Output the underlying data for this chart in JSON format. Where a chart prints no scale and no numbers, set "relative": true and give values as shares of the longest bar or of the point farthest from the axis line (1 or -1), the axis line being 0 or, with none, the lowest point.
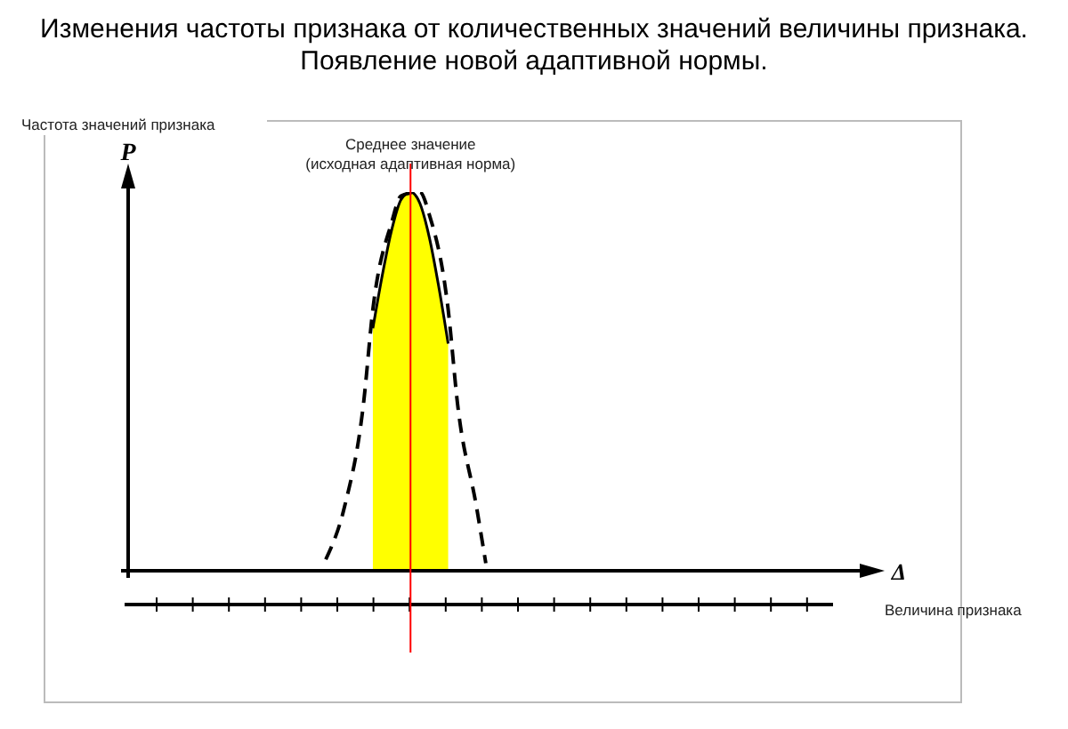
{
  "chart_data": {
    "type": "area",
    "title": "Изменения частоты признака от количественных значений величины признака.",
    "subtitle": "Появление новой адаптивной нормы.",
    "ylabel": "Частота значений признака",
    "xlabel": "Величина признака",
    "annotations": [
      "P",
      "Δ",
      "Среднее значение\n(исходная адаптивная норма)"
    ],
    "relative": true,
    "categories": [
      null,
      null,
      null,
      null,
      null,
      null,
      null,
      null,
      null,
      null,
      null,
      null,
      null,
      null,
      null,
      null,
      null,
      null,
      null,
      null,
      null,
      null,
      null,
      null,
      null,
      null,
      null,
      null,
      null,
      null,
      null,
      null,
      null,
      null,
      null,
      null,
      null,
      null,
      null,
      null,
      null,
      null,
      null,
      null,
      null,
      null,
      null,
      null,
      null,
      null,
      null,
      null,
      null,
      null,
      null,
      null,
      null,
      null,
      null,
      null,
      null,
      null,
      null,
      null,
      null,
      null,
      null,
      null,
      null,
      null,
      null,
      null,
      null,
      null,
      null,
      null,
      null,
      null,
      null,
      null,
      null
    ],
    "series": [
      {
        "color": "#ffff00",
        "values": [
          null,
          null,
          null,
          null,
          null,
          null,
          null,
          null,
          null,
          null,
          null,
          null,
          null,
          null,
          null,
          null,
          null,
          null,
          null,
          null,
          null,
          null,
          null,
          null,
          null,
          null,
          0.64,
          0.78,
          0.9,
          0.98,
          1,
          0.97,
          0.88,
          0.75,
          0.6,
          null,
          null,
          null,
          null,
          null,
          null,
          null,
          null,
          null,
          null,
          null,
          null,
          null,
          null,
          null,
          null,
          null,
          null,
          null,
          null,
          null,
          null,
          null,
          null,
          null,
          null,
          null,
          null,
          null,
          null,
          null,
          null,
          null,
          null,
          null,
          null,
          null,
          null,
          null,
          null,
          null,
          null,
          null,
          null,
          null,
          null
        ]
      },
      {
        "type": "line",
        "color": "#000000",
        "line_style": "dashed",
        "values": [
          null,
          null,
          null,
          null,
          null,
          null,
          null,
          null,
          null,
          null,
          null,
          null,
          null,
          null,
          null,
          null,
          null,
          null,
          null,
          null,
          null,
          0.03,
          null,
          0.17,
          null,
          0.44,
          0.69,
          null,
          0.92,
          0.99,
          null,
          1,
          0.94,
          null,
          0.69,
          0.44,
          null,
          0.17,
          0.02,
          null,
          null,
          null,
          null,
          null,
          null,
          null,
          null,
          null,
          null,
          null,
          null,
          null,
          null,
          null,
          null,
          null,
          null,
          null,
          null,
          null,
          null,
          null,
          null,
          null,
          null,
          null,
          null,
          null,
          null,
          null,
          null,
          null,
          null,
          null,
          null,
          null,
          null,
          null,
          null,
          null,
          null
        ]
      }
    ]
  }
}
